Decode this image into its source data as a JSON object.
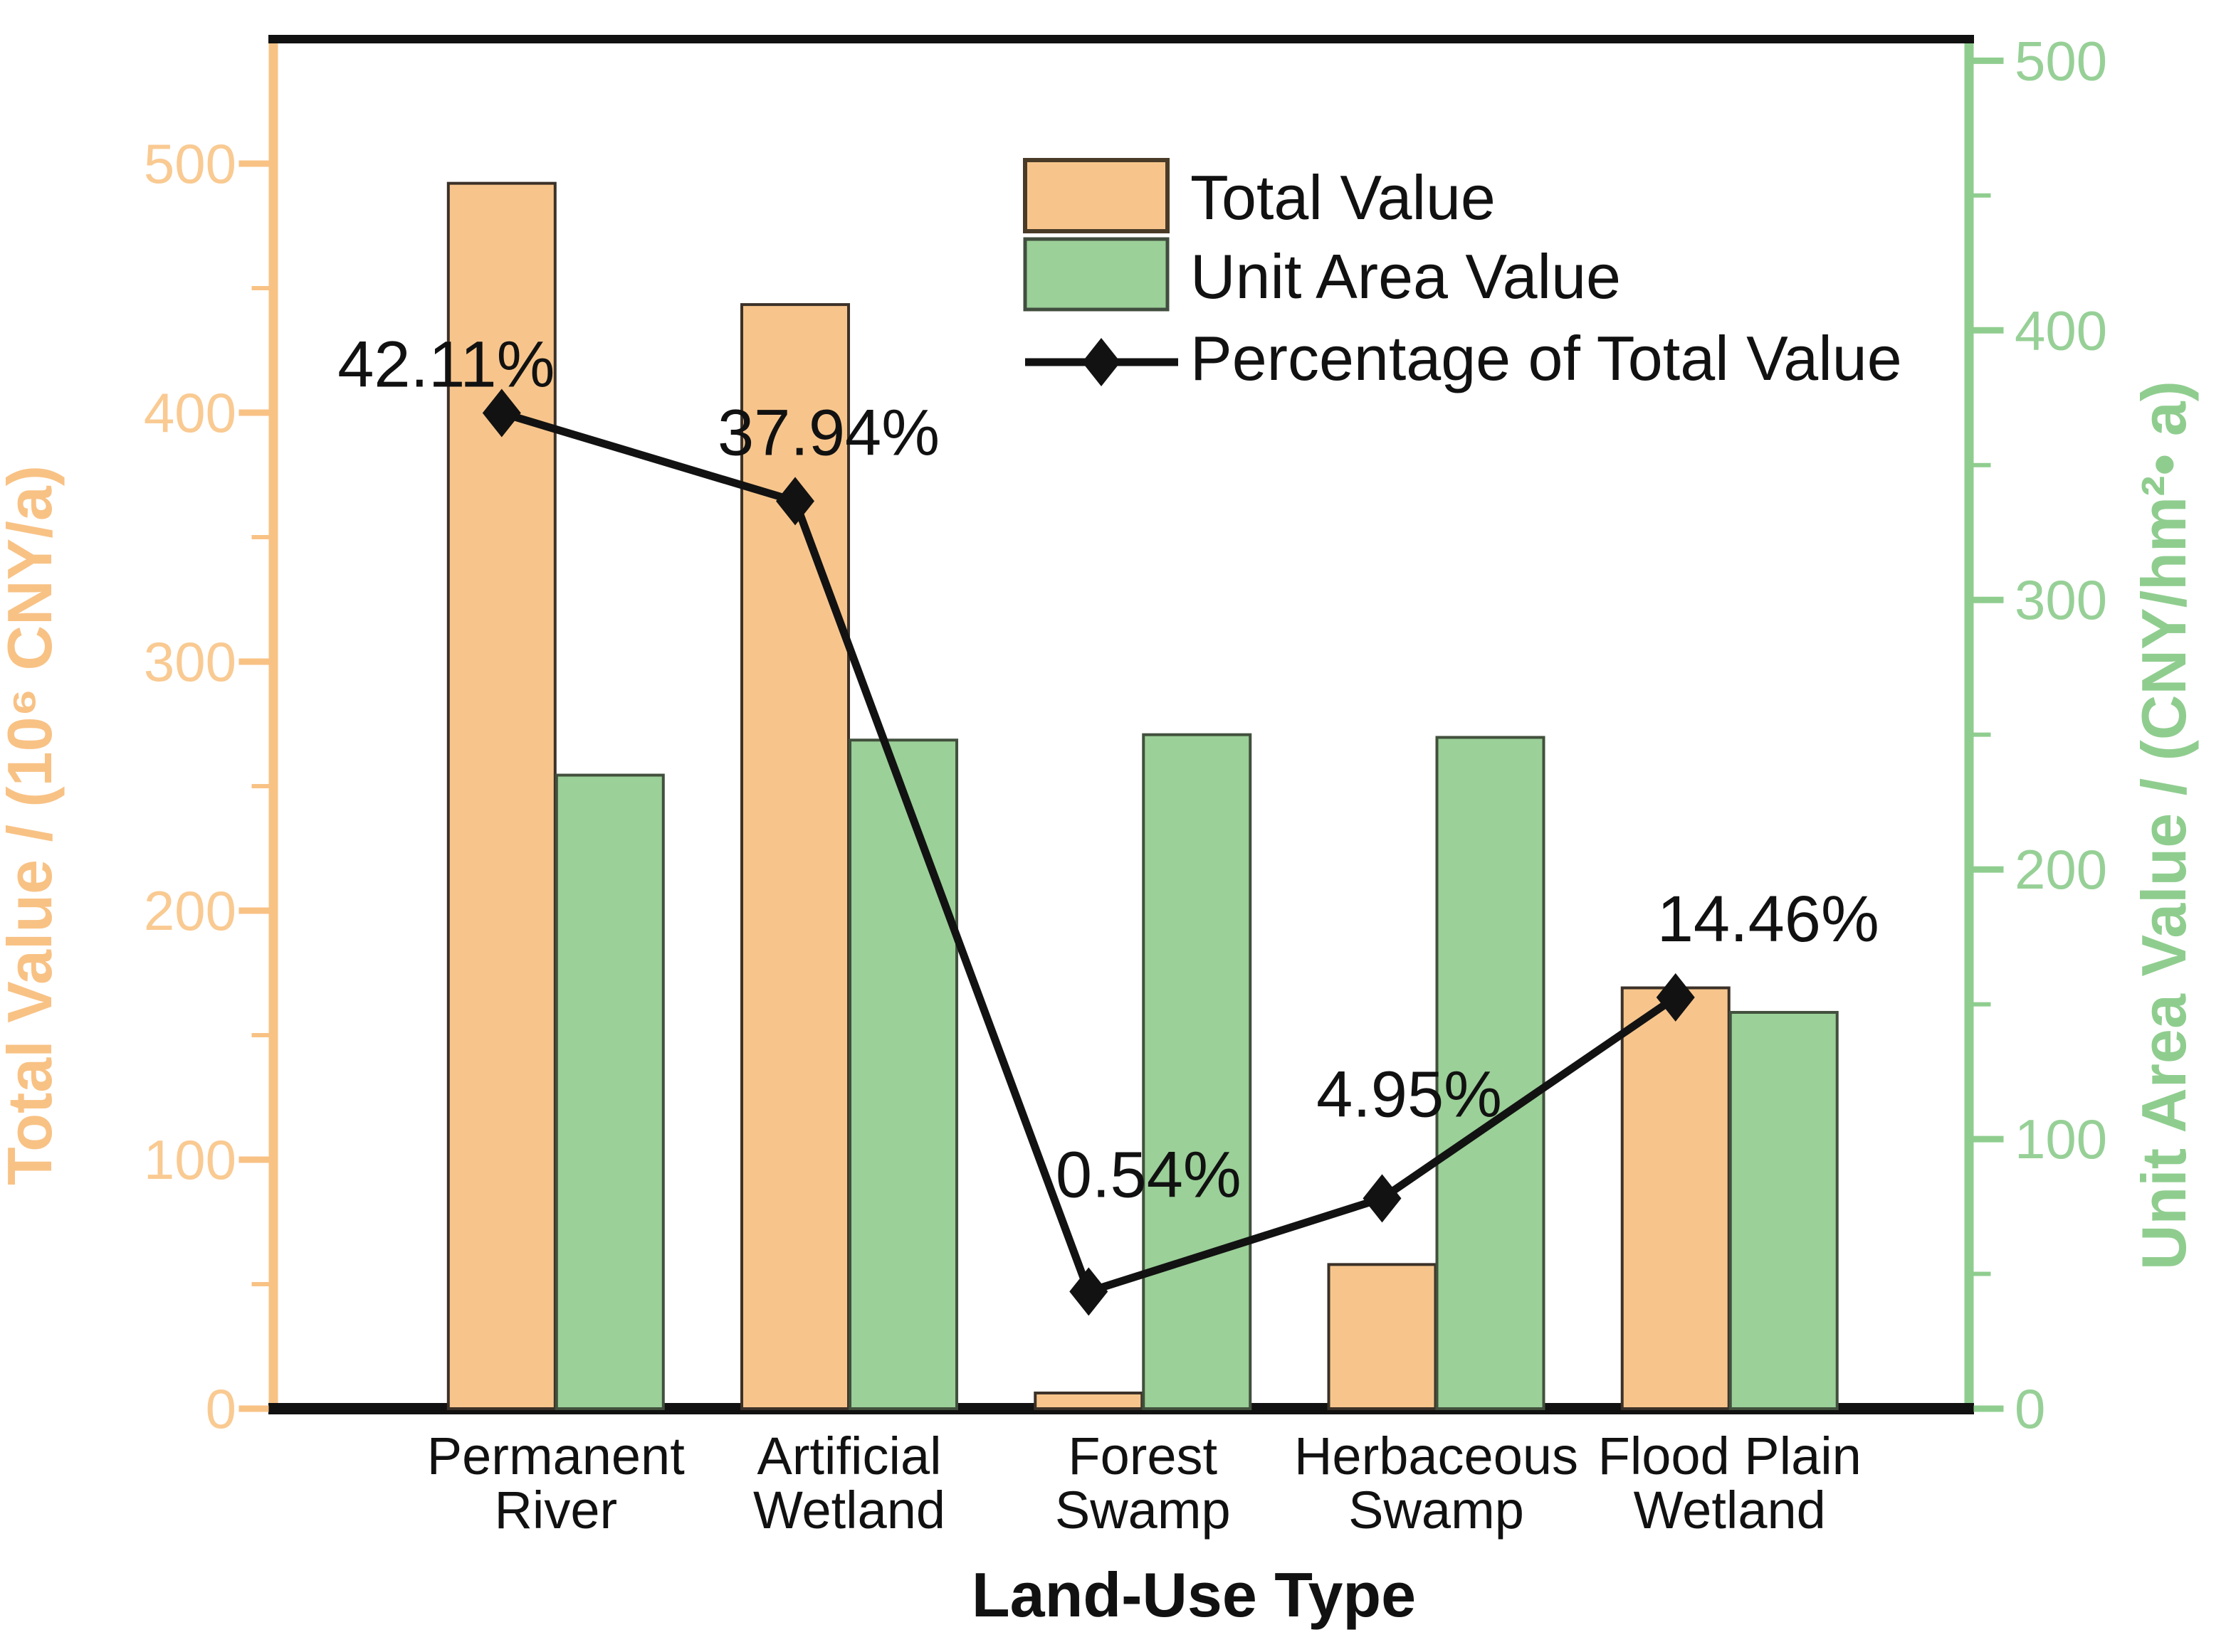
{
  "chart_data": {
    "type": "bar",
    "subtype": "dual-axis-bar-line-combo",
    "xlabel": "Land-Use Type",
    "categories": [
      [
        "Permanent",
        "River"
      ],
      [
        "Artificial",
        "Wetland"
      ],
      [
        "Forest",
        "Swamp"
      ],
      [
        "Herbaceous",
        "Swamp"
      ],
      [
        "Flood Plain",
        "Wetland"
      ]
    ],
    "series": [
      {
        "name": "Total Value",
        "type": "bar",
        "axis": "left",
        "color": "#F7C58C",
        "border_color": "#3B3128",
        "values": [
          492.1,
          443.4,
          6.3,
          57.9,
          169.0
        ]
      },
      {
        "name": "Unit Area Value",
        "type": "bar",
        "axis": "right",
        "color": "#9BD098",
        "border_color": "#41503C",
        "values": [
          235,
          248,
          250,
          249,
          147
        ]
      },
      {
        "name": "Percentage of Total Value",
        "type": "line",
        "axis": "percent",
        "color": "#121212",
        "values": [
          42.11,
          37.94,
          0.54,
          4.95,
          14.46
        ],
        "labels": [
          "42.11%",
          "37.94%",
          "0.54%",
          "4.95%",
          "14.46%"
        ]
      }
    ],
    "left_axis": {
      "label": "Total Value / (10⁶ CNY/a)",
      "color": "#F8C285",
      "tick_label_color": "#F9CA92",
      "min": 0,
      "max": 550,
      "ticks": [
        0,
        100,
        200,
        300,
        400,
        500
      ],
      "minor_step": 50
    },
    "right_axis": {
      "label": "Unit Area Value / (CNY/hm²• a)",
      "color": "#8FCD8F",
      "tick_label_color": "#97D097",
      "min": 0,
      "max": 508,
      "ticks": [
        0,
        100,
        200,
        300,
        400,
        500
      ],
      "minor_step": 50
    },
    "percent_axis": {
      "min": -5,
      "max": 59.8,
      "hidden": true
    },
    "legend": {
      "position": "top-right"
    },
    "grid": false,
    "frame_color": "#111111"
  }
}
